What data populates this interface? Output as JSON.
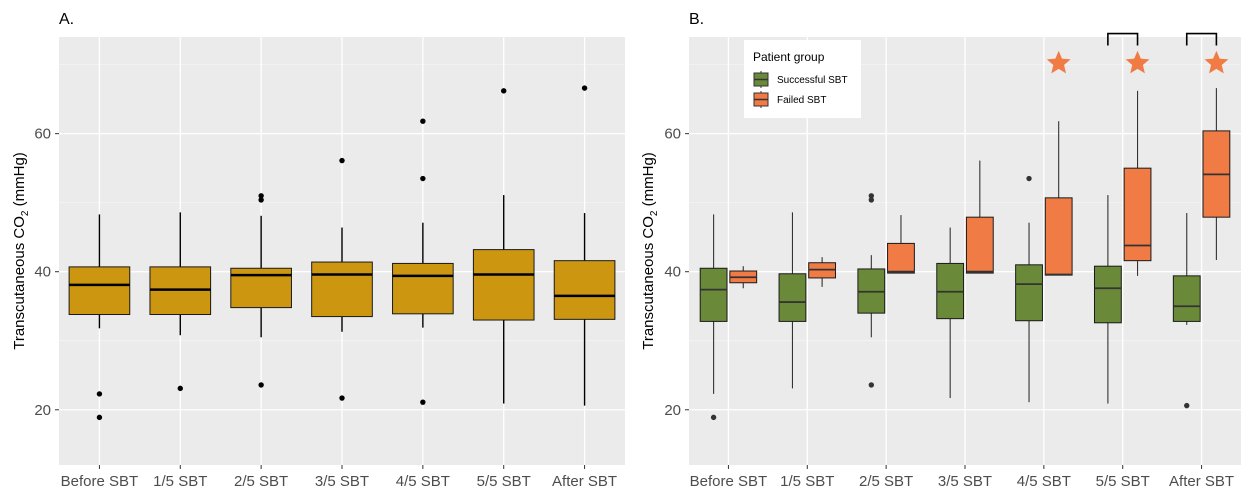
{
  "chart_data": [
    {
      "type": "box",
      "panel_label": "A.",
      "ylabel_main": "Transcutaneous CO",
      "ylabel_sub": "2",
      "ylabel_unit": " (mmHg)",
      "ylim": [
        12,
        74
      ],
      "yticks": [
        20,
        40,
        60
      ],
      "fill_color": "#cc9611",
      "categories": [
        "Before SBT",
        "1/5 SBT",
        "2/5 SBT",
        "3/5 SBT",
        "4/5 SBT",
        "5/5 SBT",
        "After SBT"
      ],
      "boxes": [
        {
          "q1": 33.8,
          "median": 38.1,
          "q3": 40.7,
          "whisker_low": 31.8,
          "whisker_high": 48.3,
          "outliers": [
            22.3,
            18.9
          ]
        },
        {
          "q1": 33.8,
          "median": 37.4,
          "q3": 40.7,
          "whisker_low": 30.8,
          "whisker_high": 48.6,
          "outliers": [
            23.1
          ]
        },
        {
          "q1": 34.8,
          "median": 39.5,
          "q3": 40.5,
          "whisker_low": 30.5,
          "whisker_high": 48.1,
          "outliers": [
            23.6,
            50.4,
            51.0
          ]
        },
        {
          "q1": 33.5,
          "median": 39.6,
          "q3": 41.4,
          "whisker_low": 31.3,
          "whisker_high": 46.4,
          "outliers": [
            21.7,
            56.1
          ]
        },
        {
          "q1": 33.9,
          "median": 39.4,
          "q3": 41.2,
          "whisker_low": 31.9,
          "whisker_high": 47.1,
          "outliers": [
            21.1,
            53.5,
            61.8
          ]
        },
        {
          "q1": 33.0,
          "median": 39.6,
          "q3": 43.2,
          "whisker_low": 20.9,
          "whisker_high": 51.1,
          "outliers": [
            66.2
          ]
        },
        {
          "q1": 33.1,
          "median": 36.5,
          "q3": 41.6,
          "whisker_low": 20.6,
          "whisker_high": 48.5,
          "outliers": [
            66.6
          ]
        }
      ]
    },
    {
      "type": "box",
      "panel_label": "B.",
      "ylabel_main": "Transcutaneous CO",
      "ylabel_sub": "2",
      "ylabel_unit": " (mmHg)",
      "ylim": [
        12,
        74
      ],
      "yticks": [
        20,
        40,
        60
      ],
      "categories": [
        "Before SBT",
        "1/5 SBT",
        "2/5 SBT",
        "3/5 SBT",
        "4/5 SBT",
        "5/5 SBT",
        "After SBT"
      ],
      "legend": {
        "title": "Patient group",
        "position": "top-left"
      },
      "series": [
        {
          "name": "Successful SBT",
          "color": "#6a8a3a",
          "boxes": [
            {
              "q1": 32.8,
              "median": 37.4,
              "q3": 40.5,
              "whisker_low": 22.3,
              "whisker_high": 48.3,
              "outliers": [
                18.9
              ]
            },
            {
              "q1": 32.8,
              "median": 35.6,
              "q3": 39.7,
              "whisker_low": 23.1,
              "whisker_high": 48.6,
              "outliers": []
            },
            {
              "q1": 34.0,
              "median": 37.1,
              "q3": 40.4,
              "whisker_low": 30.5,
              "whisker_high": 42.4,
              "outliers": [
                23.6,
                50.4,
                51.0
              ]
            },
            {
              "q1": 33.2,
              "median": 37.1,
              "q3": 41.2,
              "whisker_low": 21.7,
              "whisker_high": 46.4,
              "outliers": []
            },
            {
              "q1": 32.9,
              "median": 38.2,
              "q3": 41.0,
              "whisker_low": 21.1,
              "whisker_high": 47.1,
              "outliers": [
                53.5
              ]
            },
            {
              "q1": 32.6,
              "median": 37.6,
              "q3": 40.8,
              "whisker_low": 20.9,
              "whisker_high": 51.1,
              "outliers": []
            },
            {
              "q1": 32.8,
              "median": 35.0,
              "q3": 39.4,
              "whisker_low": 32.3,
              "whisker_high": 48.5,
              "outliers": [
                20.6
              ]
            }
          ]
        },
        {
          "name": "Failed SBT",
          "color": "#f07b45",
          "boxes": [
            {
              "q1": 38.4,
              "median": 39.2,
              "q3": 40.1,
              "whisker_low": 37.6,
              "whisker_high": 40.8,
              "outliers": []
            },
            {
              "q1": 39.1,
              "median": 40.3,
              "q3": 41.3,
              "whisker_low": 37.8,
              "whisker_high": 42.1,
              "outliers": []
            },
            {
              "q1": 39.8,
              "median": 40.0,
              "q3": 44.1,
              "whisker_low": 39.8,
              "whisker_high": 48.2,
              "outliers": []
            },
            {
              "q1": 39.8,
              "median": 40.0,
              "q3": 47.9,
              "whisker_low": 39.8,
              "whisker_high": 56.1,
              "outliers": []
            },
            {
              "q1": 39.5,
              "median": 39.6,
              "q3": 50.7,
              "whisker_low": 39.5,
              "whisker_high": 61.8,
              "outliers": []
            },
            {
              "q1": 41.6,
              "median": 43.8,
              "q3": 55.0,
              "whisker_low": 39.4,
              "whisker_high": 66.2,
              "outliers": []
            },
            {
              "q1": 47.9,
              "median": 54.1,
              "q3": 60.4,
              "whisker_low": 41.7,
              "whisker_high": 66.6,
              "outliers": []
            }
          ]
        }
      ],
      "significance_stars": [
        {
          "category_index": 4,
          "y": 70.2
        },
        {
          "category_index": 5,
          "y": 70.2
        },
        {
          "category_index": 6,
          "y": 70.2
        }
      ],
      "significance_brackets": [
        {
          "category_index": 5,
          "y": 74.5
        },
        {
          "category_index": 6,
          "y": 74.5
        }
      ],
      "star_color": "#f07b45"
    }
  ]
}
